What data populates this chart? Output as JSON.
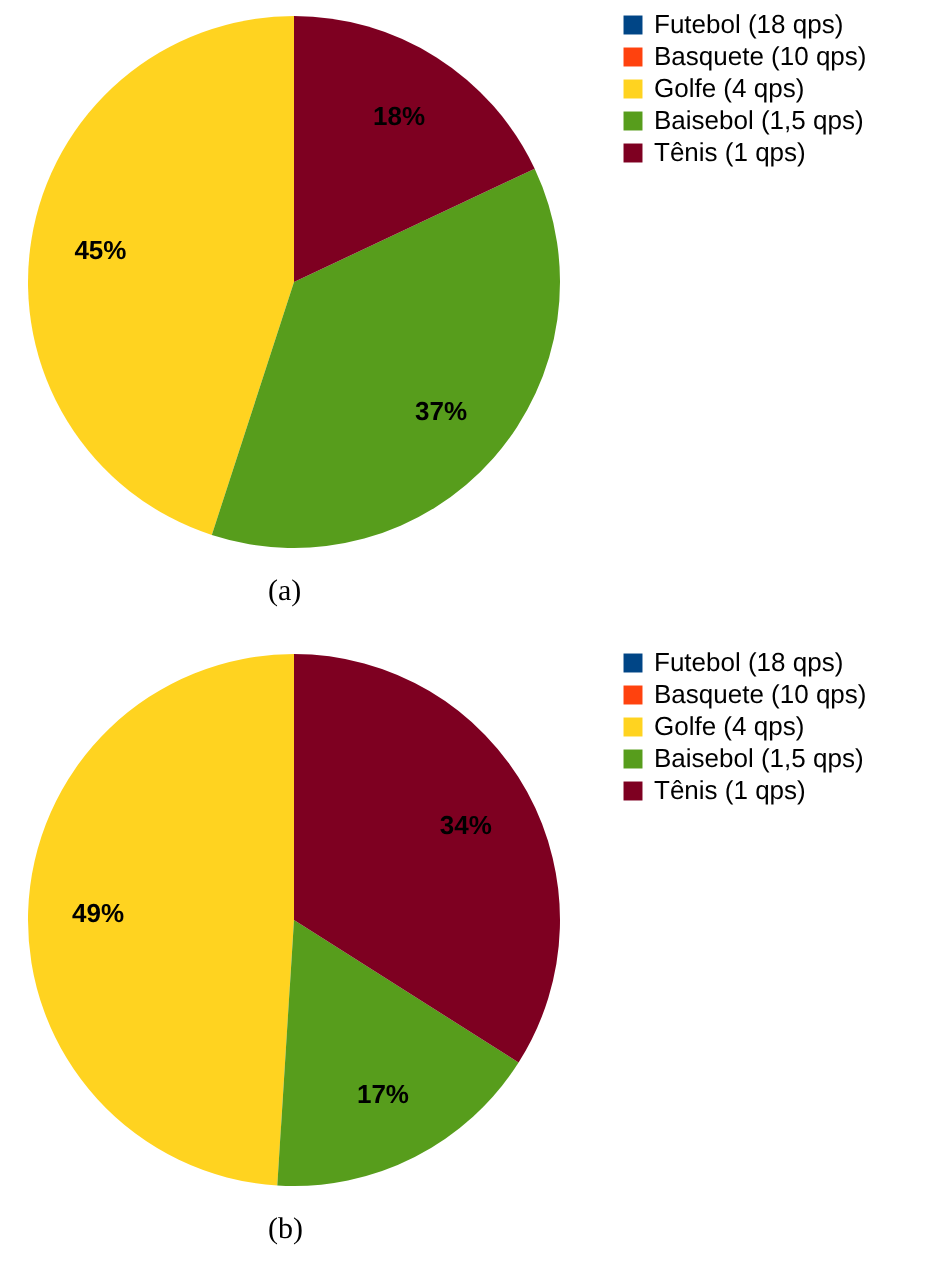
{
  "chart_data": [
    {
      "type": "pie",
      "categories": [
        "Futebol (18 qps)",
        "Basquete (10 qps)",
        "Golfe (4 qps)",
        "Baisebol (1,5 qps)",
        "Tênis (1 qps)"
      ],
      "values": [
        0,
        0,
        45,
        37,
        18
      ],
      "colors": [
        "#004586",
        "#ff420e",
        "#ffd320",
        "#579d1c",
        "#7e0021"
      ],
      "value_labels": [
        null,
        null,
        "45%",
        "37%",
        "18%"
      ],
      "legend": "right",
      "annotations": [
        "(a)"
      ]
    },
    {
      "type": "pie",
      "categories": [
        "Futebol (18 qps)",
        "Basquete (10 qps)",
        "Golfe (4 qps)",
        "Baisebol (1,5 qps)",
        "Tênis (1 qps)"
      ],
      "values": [
        0,
        0,
        49,
        17,
        34
      ],
      "colors": [
        "#004586",
        "#ff420e",
        "#ffd320",
        "#579d1c",
        "#7e0021"
      ],
      "value_labels": [
        null,
        null,
        "49%",
        "17%",
        "34%"
      ],
      "legend": "right",
      "annotations": [
        "(b)"
      ]
    }
  ]
}
